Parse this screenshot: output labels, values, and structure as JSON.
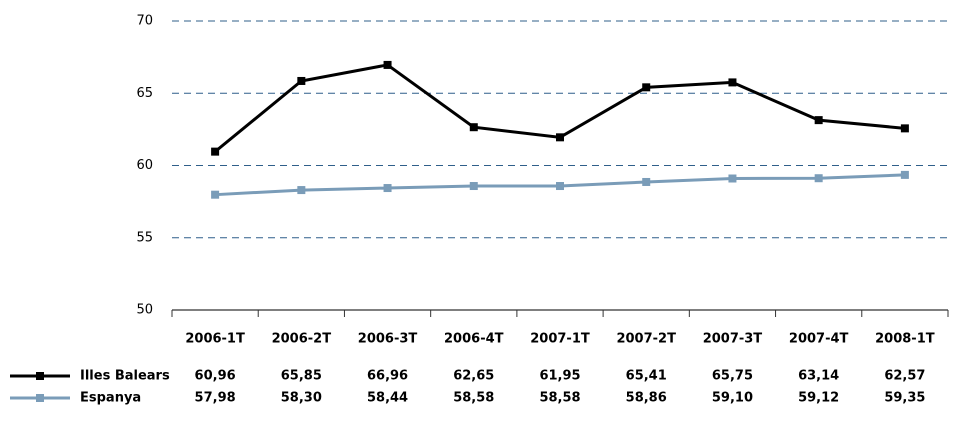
{
  "chart_data": {
    "type": "line",
    "categories": [
      "2006-1T",
      "2006-2T",
      "2006-3T",
      "2006-4T",
      "2007-1T",
      "2007-2T",
      "2007-3T",
      "2007-4T",
      "2008-1T"
    ],
    "series": [
      {
        "name": "Illes Balears",
        "color": "#000000",
        "values": [
          60.96,
          65.85,
          66.96,
          62.65,
          61.95,
          65.41,
          65.75,
          63.14,
          62.57
        ],
        "value_labels": [
          "60,96",
          "65,85",
          "66,96",
          "62,65",
          "61,95",
          "65,41",
          "65,75",
          "63,14",
          "62,57"
        ]
      },
      {
        "name": "Espanya",
        "color": "#7a9cb8",
        "values": [
          57.98,
          58.3,
          58.44,
          58.58,
          58.58,
          58.86,
          59.1,
          59.12,
          59.35
        ],
        "value_labels": [
          "57,98",
          "58,30",
          "58,44",
          "58,58",
          "58,58",
          "58,86",
          "59,10",
          "59,12",
          "59,35"
        ]
      }
    ],
    "ylim": [
      50,
      70
    ],
    "yticks": [
      50,
      55,
      60,
      65,
      70
    ],
    "grid": true
  }
}
